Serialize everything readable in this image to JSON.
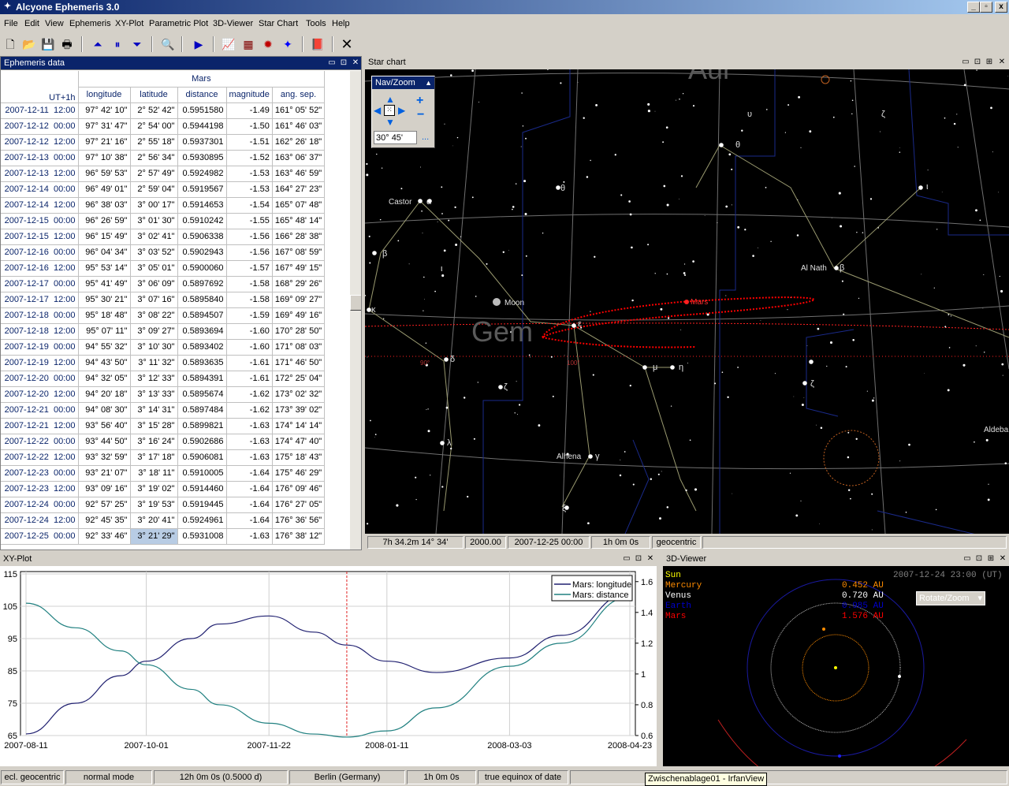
{
  "window": {
    "title": "Alcyone Ephemeris 3.0"
  },
  "menu": [
    "File",
    "Edit",
    "View",
    "Ephemeris",
    "XY-Plot",
    "Parametric Plot",
    "3D-Viewer",
    "Star Chart",
    "Tools",
    "Help"
  ],
  "ephemeris": {
    "title": "Ephemeris data",
    "object": "Mars",
    "time_header": "UT+1h",
    "columns": [
      "longitude",
      "latitude",
      "distance",
      "magnitude",
      "ang. sep."
    ],
    "rows": [
      [
        "2007-12-11  12:00",
        "97° 42' 10\"",
        "2° 52' 42\"",
        "0.5951580",
        "-1.49",
        "161° 05' 52\""
      ],
      [
        "2007-12-12  00:00",
        "97° 31' 47\"",
        "2° 54' 00\"",
        "0.5944198",
        "-1.50",
        "161° 46' 03\""
      ],
      [
        "2007-12-12  12:00",
        "97° 21' 16\"",
        "2° 55' 18\"",
        "0.5937301",
        "-1.51",
        "162° 26' 18\""
      ],
      [
        "2007-12-13  00:00",
        "97° 10' 38\"",
        "2° 56' 34\"",
        "0.5930895",
        "-1.52",
        "163° 06' 37\""
      ],
      [
        "2007-12-13  12:00",
        "96° 59' 53\"",
        "2° 57' 49\"",
        "0.5924982",
        "-1.53",
        "163° 46' 59\""
      ],
      [
        "2007-12-14  00:00",
        "96° 49' 01\"",
        "2° 59' 04\"",
        "0.5919567",
        "-1.53",
        "164° 27' 23\""
      ],
      [
        "2007-12-14  12:00",
        "96° 38' 03\"",
        "3° 00' 17\"",
        "0.5914653",
        "-1.54",
        "165° 07' 48\""
      ],
      [
        "2007-12-15  00:00",
        "96° 26' 59\"",
        "3° 01' 30\"",
        "0.5910242",
        "-1.55",
        "165° 48' 14\""
      ],
      [
        "2007-12-15  12:00",
        "96° 15' 49\"",
        "3° 02' 41\"",
        "0.5906338",
        "-1.56",
        "166° 28' 38\""
      ],
      [
        "2007-12-16  00:00",
        "96° 04' 34\"",
        "3° 03' 52\"",
        "0.5902943",
        "-1.56",
        "167° 08' 59\""
      ],
      [
        "2007-12-16  12:00",
        "95° 53' 14\"",
        "3° 05' 01\"",
        "0.5900060",
        "-1.57",
        "167° 49' 15\""
      ],
      [
        "2007-12-17  00:00",
        "95° 41' 49\"",
        "3° 06' 09\"",
        "0.5897692",
        "-1.58",
        "168° 29' 26\""
      ],
      [
        "2007-12-17  12:00",
        "95° 30' 21\"",
        "3° 07' 16\"",
        "0.5895840",
        "-1.58",
        "169° 09' 27\""
      ],
      [
        "2007-12-18  00:00",
        "95° 18' 48\"",
        "3° 08' 22\"",
        "0.5894507",
        "-1.59",
        "169° 49' 16\""
      ],
      [
        "2007-12-18  12:00",
        "95° 07' 11\"",
        "3° 09' 27\"",
        "0.5893694",
        "-1.60",
        "170° 28' 50\""
      ],
      [
        "2007-12-19  00:00",
        "94° 55' 32\"",
        "3° 10' 30\"",
        "0.5893402",
        "-1.60",
        "171° 08' 03\""
      ],
      [
        "2007-12-19  12:00",
        "94° 43' 50\"",
        "3° 11' 32\"",
        "0.5893635",
        "-1.61",
        "171° 46' 50\""
      ],
      [
        "2007-12-20  00:00",
        "94° 32' 05\"",
        "3° 12' 33\"",
        "0.5894391",
        "-1.61",
        "172° 25' 04\""
      ],
      [
        "2007-12-20  12:00",
        "94° 20' 18\"",
        "3° 13' 33\"",
        "0.5895674",
        "-1.62",
        "173° 02' 32\""
      ],
      [
        "2007-12-21  00:00",
        "94° 08' 30\"",
        "3° 14' 31\"",
        "0.5897484",
        "-1.62",
        "173° 39' 02\""
      ],
      [
        "2007-12-21  12:00",
        "93° 56' 40\"",
        "3° 15' 28\"",
        "0.5899821",
        "-1.63",
        "174° 14' 14\""
      ],
      [
        "2007-12-22  00:00",
        "93° 44' 50\"",
        "3° 16' 24\"",
        "0.5902686",
        "-1.63",
        "174° 47' 40\""
      ],
      [
        "2007-12-22  12:00",
        "93° 32' 59\"",
        "3° 17' 18\"",
        "0.5906081",
        "-1.63",
        "175° 18' 43\""
      ],
      [
        "2007-12-23  00:00",
        "93° 21' 07\"",
        "3° 18' 11\"",
        "0.5910005",
        "-1.64",
        "175° 46' 29\""
      ],
      [
        "2007-12-23  12:00",
        "93° 09' 16\"",
        "3° 19' 02\"",
        "0.5914460",
        "-1.64",
        "176° 09' 46\""
      ],
      [
        "2007-12-24  00:00",
        "92° 57' 25\"",
        "3° 19' 53\"",
        "0.5919445",
        "-1.64",
        "176° 27' 05\""
      ],
      [
        "2007-12-24  12:00",
        "92° 45' 35\"",
        "3° 20' 41\"",
        "0.5924961",
        "-1.64",
        "176° 36' 56\""
      ],
      [
        "2007-12-25  00:00",
        "92° 33' 46\"",
        "3° 21' 29\"",
        "0.5931008",
        "-1.63",
        "176° 38' 12\""
      ]
    ],
    "highlight_row": 27,
    "highlight_col": 2
  },
  "starchart": {
    "title": "Star chart",
    "navzoom_title": "Nav/Zoom",
    "fov": "30° 45'",
    "more_label": "...",
    "status": {
      "coords": "7h 34.2m   14° 34'",
      "epoch": "2000.00",
      "datetime": "2007-12-25  00:00",
      "step": "1h 0m 0s",
      "mode": "geocentric"
    },
    "constellations": [
      {
        "name": "Aur",
        "pos": [
          "x",
          "y"
        ]
      },
      {
        "name": "Gem"
      }
    ],
    "labels": [
      {
        "t": "Castor"
      },
      {
        "t": "α"
      },
      {
        "t": "β"
      },
      {
        "t": "θ"
      },
      {
        "t": "θ"
      },
      {
        "t": "ι"
      },
      {
        "t": "Al Nath"
      },
      {
        "t": "β"
      },
      {
        "t": "Moon"
      },
      {
        "t": "Mars"
      },
      {
        "t": "ε"
      },
      {
        "t": "δ"
      },
      {
        "t": "μ"
      },
      {
        "t": "η"
      },
      {
        "t": "ζ"
      },
      {
        "t": "ζ"
      },
      {
        "t": "λ"
      },
      {
        "t": "Alhena"
      },
      {
        "t": "γ"
      },
      {
        "t": "ξ"
      },
      {
        "t": "κ"
      },
      {
        "t": "ι"
      },
      {
        "t": "Aldeba"
      },
      {
        "t": "υ"
      },
      {
        "t": "ζ"
      }
    ],
    "ecliptic_ticks": [
      "90°",
      "100°"
    ]
  },
  "xyplot": {
    "title": "XY-Plot",
    "legend": [
      "Mars: longitude",
      "Mars: distance"
    ]
  },
  "chart_data": {
    "type": "line",
    "x": [
      "2007-08-11",
      "2007-09-01",
      "2007-09-20",
      "2007-10-01",
      "2007-10-20",
      "2007-11-01",
      "2007-11-22",
      "2007-12-11",
      "2007-12-25",
      "2008-01-11",
      "2008-02-01",
      "2008-03-03",
      "2008-03-25",
      "2008-04-23"
    ],
    "series": [
      {
        "name": "Mars: longitude",
        "axis": "left",
        "values": [
          65.5,
          75,
          83.5,
          88,
          95,
          99.5,
          102,
          97,
          93,
          88,
          84.5,
          89,
          96,
          109
        ]
      },
      {
        "name": "Mars: distance",
        "axis": "right",
        "values": [
          1.46,
          1.3,
          1.15,
          1.06,
          0.9,
          0.8,
          0.68,
          0.61,
          0.59,
          0.63,
          0.78,
          1.05,
          1.2,
          1.5
        ]
      }
    ],
    "xticks": [
      "2007-08-11",
      "2007-10-01",
      "2007-11-22",
      "2008-01-11",
      "2008-03-03",
      "2008-04-23"
    ],
    "yticks_left": [
      "115",
      "105",
      "95",
      "85",
      "75",
      "65"
    ],
    "yticks_right": [
      "1.6",
      "1.4",
      "1.2",
      "1",
      "0.8",
      "0.6"
    ],
    "ylim": [
      65,
      115
    ],
    "ylim_right": [
      0.6,
      1.65
    ],
    "grid": true,
    "legend_placement": "top-right",
    "marker_date": "2007-12-25"
  },
  "viewer3d": {
    "title": "3D-Viewer",
    "datetime": "2007-12-24   23:00 (UT)",
    "rotate_label": "Rotate/Zoom",
    "planets": [
      {
        "name": "Sun",
        "dist": "",
        "color": "#ffff00"
      },
      {
        "name": "Mercury",
        "dist": "0.452 AU",
        "color": "#ff8c00"
      },
      {
        "name": "Venus",
        "dist": "0.720 AU",
        "color": "#ffffff"
      },
      {
        "name": "Earth",
        "dist": "0.985 AU",
        "color": "#0000cd"
      },
      {
        "name": "Mars",
        "dist": "1.576 AU",
        "color": "#ff0000"
      }
    ]
  },
  "statusbar": [
    "ecl. geocentric",
    "normal mode",
    "12h 0m 0s (0.5000 d)",
    "Berlin (Germany)",
    "1h 0m 0s",
    "true equinox of date"
  ],
  "tooltip": "Zwischenablage01 - IrfanView"
}
